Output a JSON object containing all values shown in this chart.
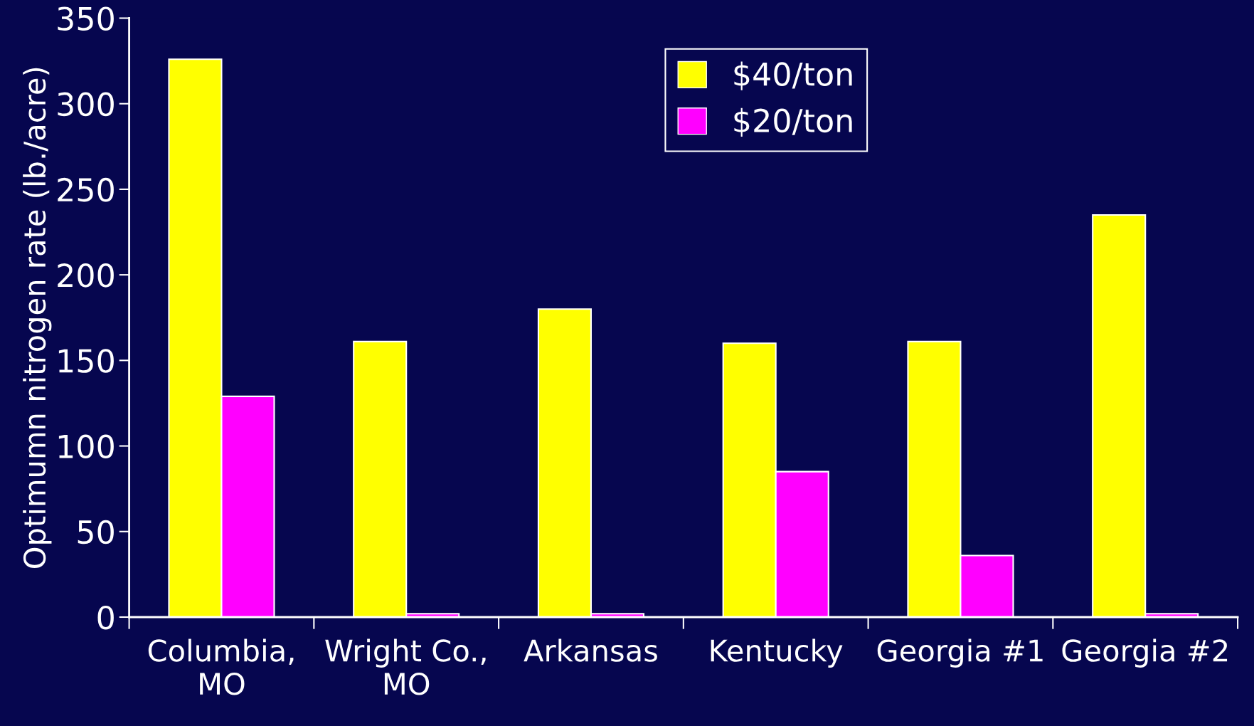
{
  "chart_data": {
    "type": "bar",
    "ylabel": "Optimumn nitrogen rate (lb./acre)",
    "categories": [
      "Columbia,\nMO",
      "Wright Co.,\nMO",
      "Arkansas",
      "Kentucky",
      "Georgia #1",
      "Georgia #2"
    ],
    "series": [
      {
        "name": "$40/ton",
        "color": "#ffff00",
        "values": [
          326,
          161,
          180,
          160,
          161,
          235
        ]
      },
      {
        "name": "$20/ton",
        "color": "#ff00ff",
        "values": [
          129,
          2,
          2,
          85,
          36,
          2
        ]
      }
    ],
    "ylim": [
      0,
      350
    ],
    "yticks": [
      0,
      50,
      100,
      150,
      200,
      250,
      300,
      350
    ],
    "grid": false,
    "legend": "top right"
  }
}
